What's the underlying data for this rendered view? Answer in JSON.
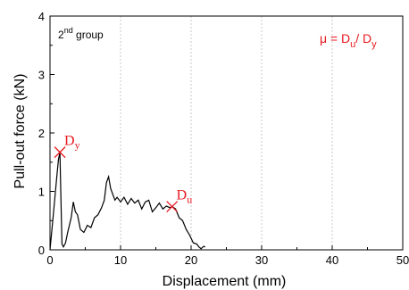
{
  "chart_data": {
    "type": "line",
    "xlabel": "Displacement (mm)",
    "ylabel": "Pull-out force (kN)",
    "xlim": [
      0,
      50
    ],
    "ylim": [
      0,
      4
    ],
    "xticks": [
      "0",
      "10",
      "20",
      "30",
      "40",
      "50"
    ],
    "yticks": [
      "0",
      "1",
      "2",
      "3",
      "4"
    ],
    "vertical_gridlines": [
      10,
      20,
      30,
      40,
      50
    ],
    "grid_style": "dashed-vertical",
    "group_label": {
      "base": "2",
      "sup": "nd",
      "rest": " group"
    },
    "mu_label": {
      "mu": "μ = D",
      "sub1": "u",
      "mid": "/ D",
      "sub2": "y"
    },
    "markers": [
      {
        "name": "Dy",
        "letter": "D",
        "sub": "y",
        "x": 1.4,
        "y": 1.67
      },
      {
        "name": "Du",
        "letter": "D",
        "sub": "u",
        "x": 17.3,
        "y": 0.74
      }
    ],
    "series": [
      {
        "color": "#000000",
        "x": [
          0,
          0.5,
          1.0,
          1.2,
          1.4,
          1.55,
          1.7,
          1.9,
          2.2,
          2.5,
          3.0,
          3.3,
          3.6,
          3.9,
          4.3,
          4.8,
          5.3,
          5.8,
          6.3,
          6.8,
          7.3,
          7.7,
          8.0,
          8.3,
          8.6,
          8.9,
          9.2,
          9.5,
          10.0,
          10.5,
          11.0,
          11.5,
          12.0,
          12.5,
          13.0,
          13.5,
          14.0,
          14.5,
          15.0,
          15.5,
          16.0,
          16.5,
          17.0,
          17.3,
          17.8,
          18.3,
          18.8,
          19.3,
          19.8,
          20.3,
          20.8,
          21.1,
          21.4,
          21.8,
          22.0
        ],
        "y": [
          0,
          0.65,
          1.3,
          1.55,
          1.67,
          0.9,
          0.1,
          0.05,
          0.12,
          0.3,
          0.55,
          0.82,
          0.65,
          0.6,
          0.35,
          0.3,
          0.42,
          0.38,
          0.55,
          0.6,
          0.72,
          0.85,
          1.15,
          1.25,
          1.05,
          0.95,
          0.85,
          0.9,
          0.82,
          0.9,
          0.78,
          0.88,
          0.8,
          0.85,
          0.7,
          0.82,
          0.85,
          0.65,
          0.72,
          0.8,
          0.7,
          0.75,
          0.72,
          0.74,
          0.7,
          0.55,
          0.5,
          0.35,
          0.25,
          0.12,
          0.1,
          0.05,
          0.02,
          0.06,
          0.05
        ]
      }
    ]
  }
}
